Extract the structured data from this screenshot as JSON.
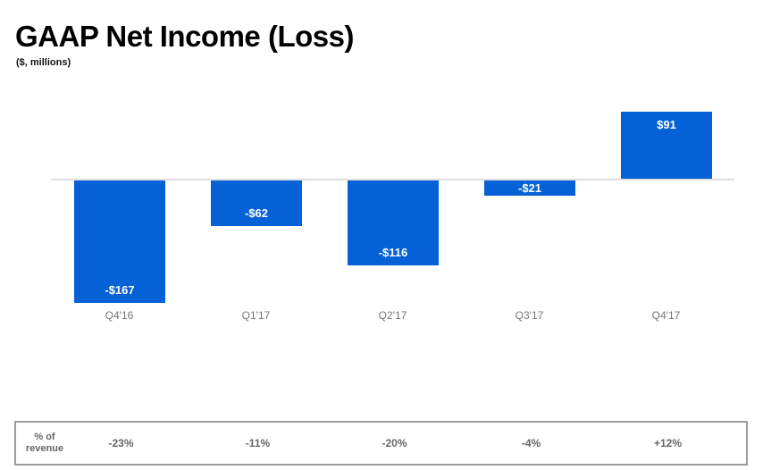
{
  "header": {
    "title": "GAAP Net Income (Loss)",
    "subtitle": "($, millions)"
  },
  "chart_data": {
    "type": "bar",
    "categories": [
      "Q4'16",
      "Q1'17",
      "Q2'17",
      "Q3'17",
      "Q4'17"
    ],
    "values": [
      -167,
      -62,
      -116,
      -21,
      91
    ],
    "bar_labels": [
      "-$167",
      "-$62",
      "-$116",
      "-$21",
      "$91"
    ],
    "title": "GAAP Net Income (Loss)",
    "units": "$, millions",
    "xlabel": "",
    "ylabel": "",
    "baseline": 0,
    "grid": false,
    "legend": false,
    "bar_color": "#0561d5",
    "bar_label_color": "#ffffff",
    "axis_label_color": "#757575",
    "zero_line_color": "#dedede"
  },
  "revenue_row": {
    "label_line1": "% of",
    "label_line2": "revenue",
    "values": [
      "-23%",
      "-11%",
      "-20%",
      "-4%",
      "+12%"
    ]
  }
}
